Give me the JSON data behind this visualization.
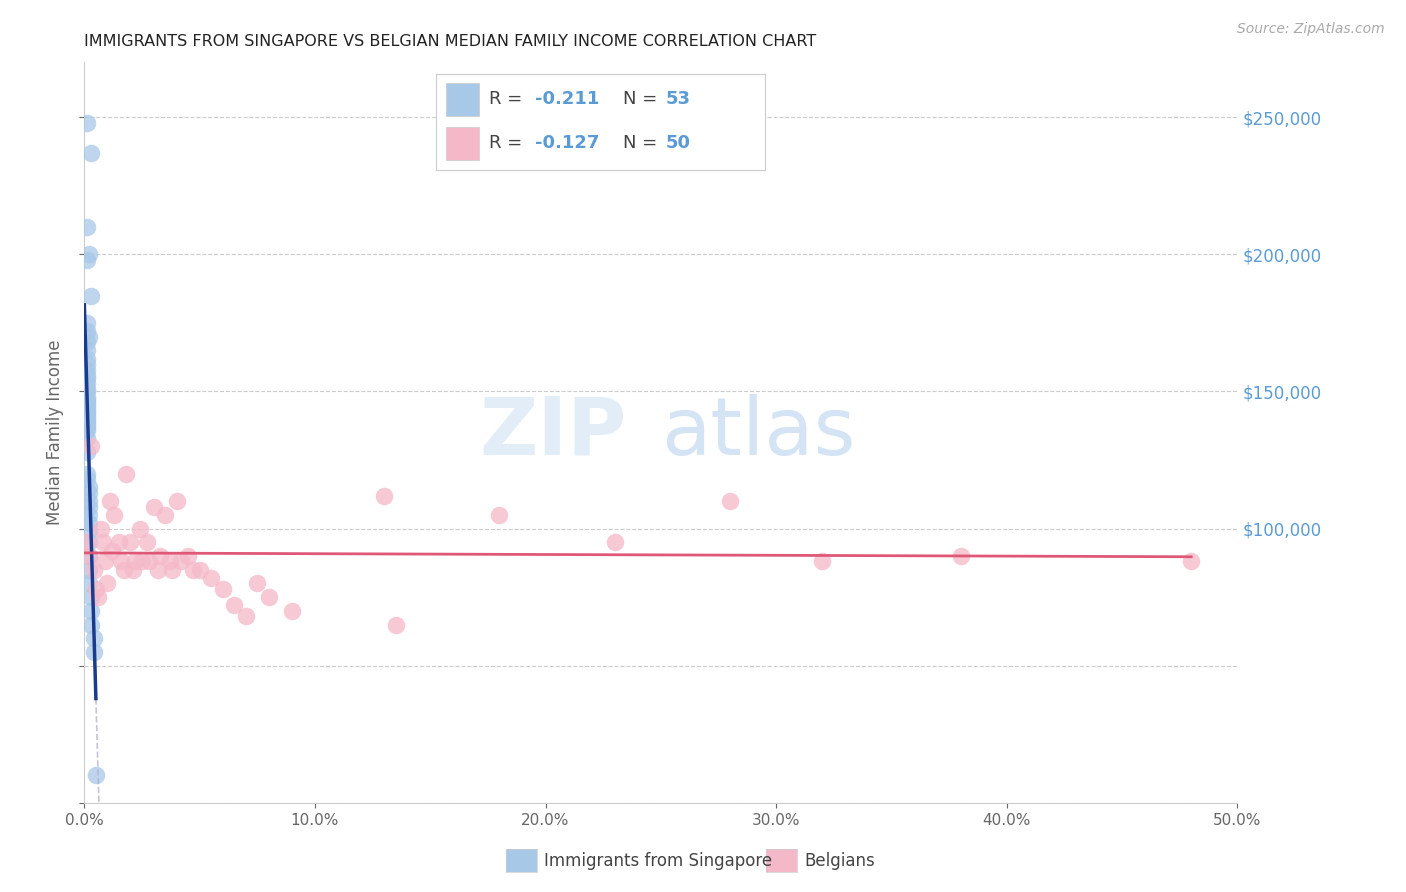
{
  "title": "IMMIGRANTS FROM SINGAPORE VS BELGIAN MEDIAN FAMILY INCOME CORRELATION CHART",
  "source": "Source: ZipAtlas.com",
  "ylabel": "Median Family Income",
  "xlim": [
    0.0,
    0.5
  ],
  "ylim": [
    0,
    270000
  ],
  "xticks": [
    0.0,
    0.1,
    0.2,
    0.3,
    0.4,
    0.5
  ],
  "xtick_labels": [
    "0.0%",
    "10.0%",
    "20.0%",
    "30.0%",
    "40.0%",
    "50.0%"
  ],
  "yticks_grid": [
    0,
    50000,
    100000,
    150000,
    200000,
    250000
  ],
  "yticks_right": [
    100000,
    150000,
    200000,
    250000
  ],
  "ytick_labels_right": [
    "$100,000",
    "$150,000",
    "$200,000",
    "$250,000"
  ],
  "watermark_zip": "ZIP",
  "watermark_atlas": "atlas",
  "legend_R_color": "#5b9bd5",
  "legend_N_color": "#5b9bd5",
  "legend_label_color": "#444444",
  "legend_blue_R": "-0.211",
  "legend_blue_N": "53",
  "legend_pink_R": "-0.127",
  "legend_pink_N": "50",
  "blue_scatter_color": "#a8c8e8",
  "pink_scatter_color": "#f5b8c8",
  "blue_line_color": "#1a3a8c",
  "pink_line_color": "#e05878",
  "right_axis_color": "#5b9bd5",
  "grid_color": "#cccccc",
  "dashed_line_color": "#aaaacc",
  "blue_scatter_x": [
    0.001,
    0.003,
    0.001,
    0.002,
    0.001,
    0.003,
    0.001,
    0.001,
    0.002,
    0.001,
    0.001,
    0.001,
    0.001,
    0.001,
    0.001,
    0.001,
    0.001,
    0.001,
    0.001,
    0.001,
    0.001,
    0.001,
    0.001,
    0.001,
    0.001,
    0.001,
    0.001,
    0.001,
    0.001,
    0.001,
    0.001,
    0.001,
    0.001,
    0.001,
    0.001,
    0.001,
    0.002,
    0.002,
    0.002,
    0.002,
    0.002,
    0.002,
    0.002,
    0.002,
    0.002,
    0.002,
    0.002,
    0.003,
    0.003,
    0.003,
    0.004,
    0.004,
    0.005
  ],
  "blue_scatter_y": [
    248000,
    237000,
    210000,
    200000,
    198000,
    185000,
    175000,
    172000,
    170000,
    168000,
    165000,
    162000,
    160000,
    158000,
    156000,
    155000,
    153000,
    151000,
    150000,
    148000,
    147000,
    146000,
    145000,
    144000,
    143000,
    142000,
    141000,
    140000,
    139000,
    138000,
    137000,
    136000,
    133000,
    128000,
    120000,
    118000,
    115000,
    113000,
    110000,
    108000,
    105000,
    102000,
    99000,
    95000,
    90000,
    85000,
    80000,
    75000,
    70000,
    65000,
    60000,
    55000,
    10000
  ],
  "pink_scatter_x": [
    0.001,
    0.002,
    0.003,
    0.004,
    0.005,
    0.006,
    0.007,
    0.008,
    0.009,
    0.01,
    0.011,
    0.012,
    0.013,
    0.015,
    0.016,
    0.017,
    0.018,
    0.02,
    0.021,
    0.022,
    0.024,
    0.025,
    0.027,
    0.028,
    0.03,
    0.032,
    0.033,
    0.035,
    0.037,
    0.038,
    0.04,
    0.042,
    0.045,
    0.047,
    0.05,
    0.055,
    0.06,
    0.065,
    0.07,
    0.075,
    0.08,
    0.09,
    0.13,
    0.135,
    0.18,
    0.23,
    0.28,
    0.32,
    0.38,
    0.48
  ],
  "pink_scatter_y": [
    95000,
    90000,
    130000,
    85000,
    78000,
    75000,
    100000,
    95000,
    88000,
    80000,
    110000,
    92000,
    105000,
    95000,
    88000,
    85000,
    120000,
    95000,
    85000,
    88000,
    100000,
    88000,
    95000,
    88000,
    108000,
    85000,
    90000,
    105000,
    88000,
    85000,
    110000,
    88000,
    90000,
    85000,
    85000,
    82000,
    78000,
    72000,
    68000,
    80000,
    75000,
    70000,
    112000,
    65000,
    105000,
    95000,
    110000,
    88000,
    90000,
    88000
  ]
}
